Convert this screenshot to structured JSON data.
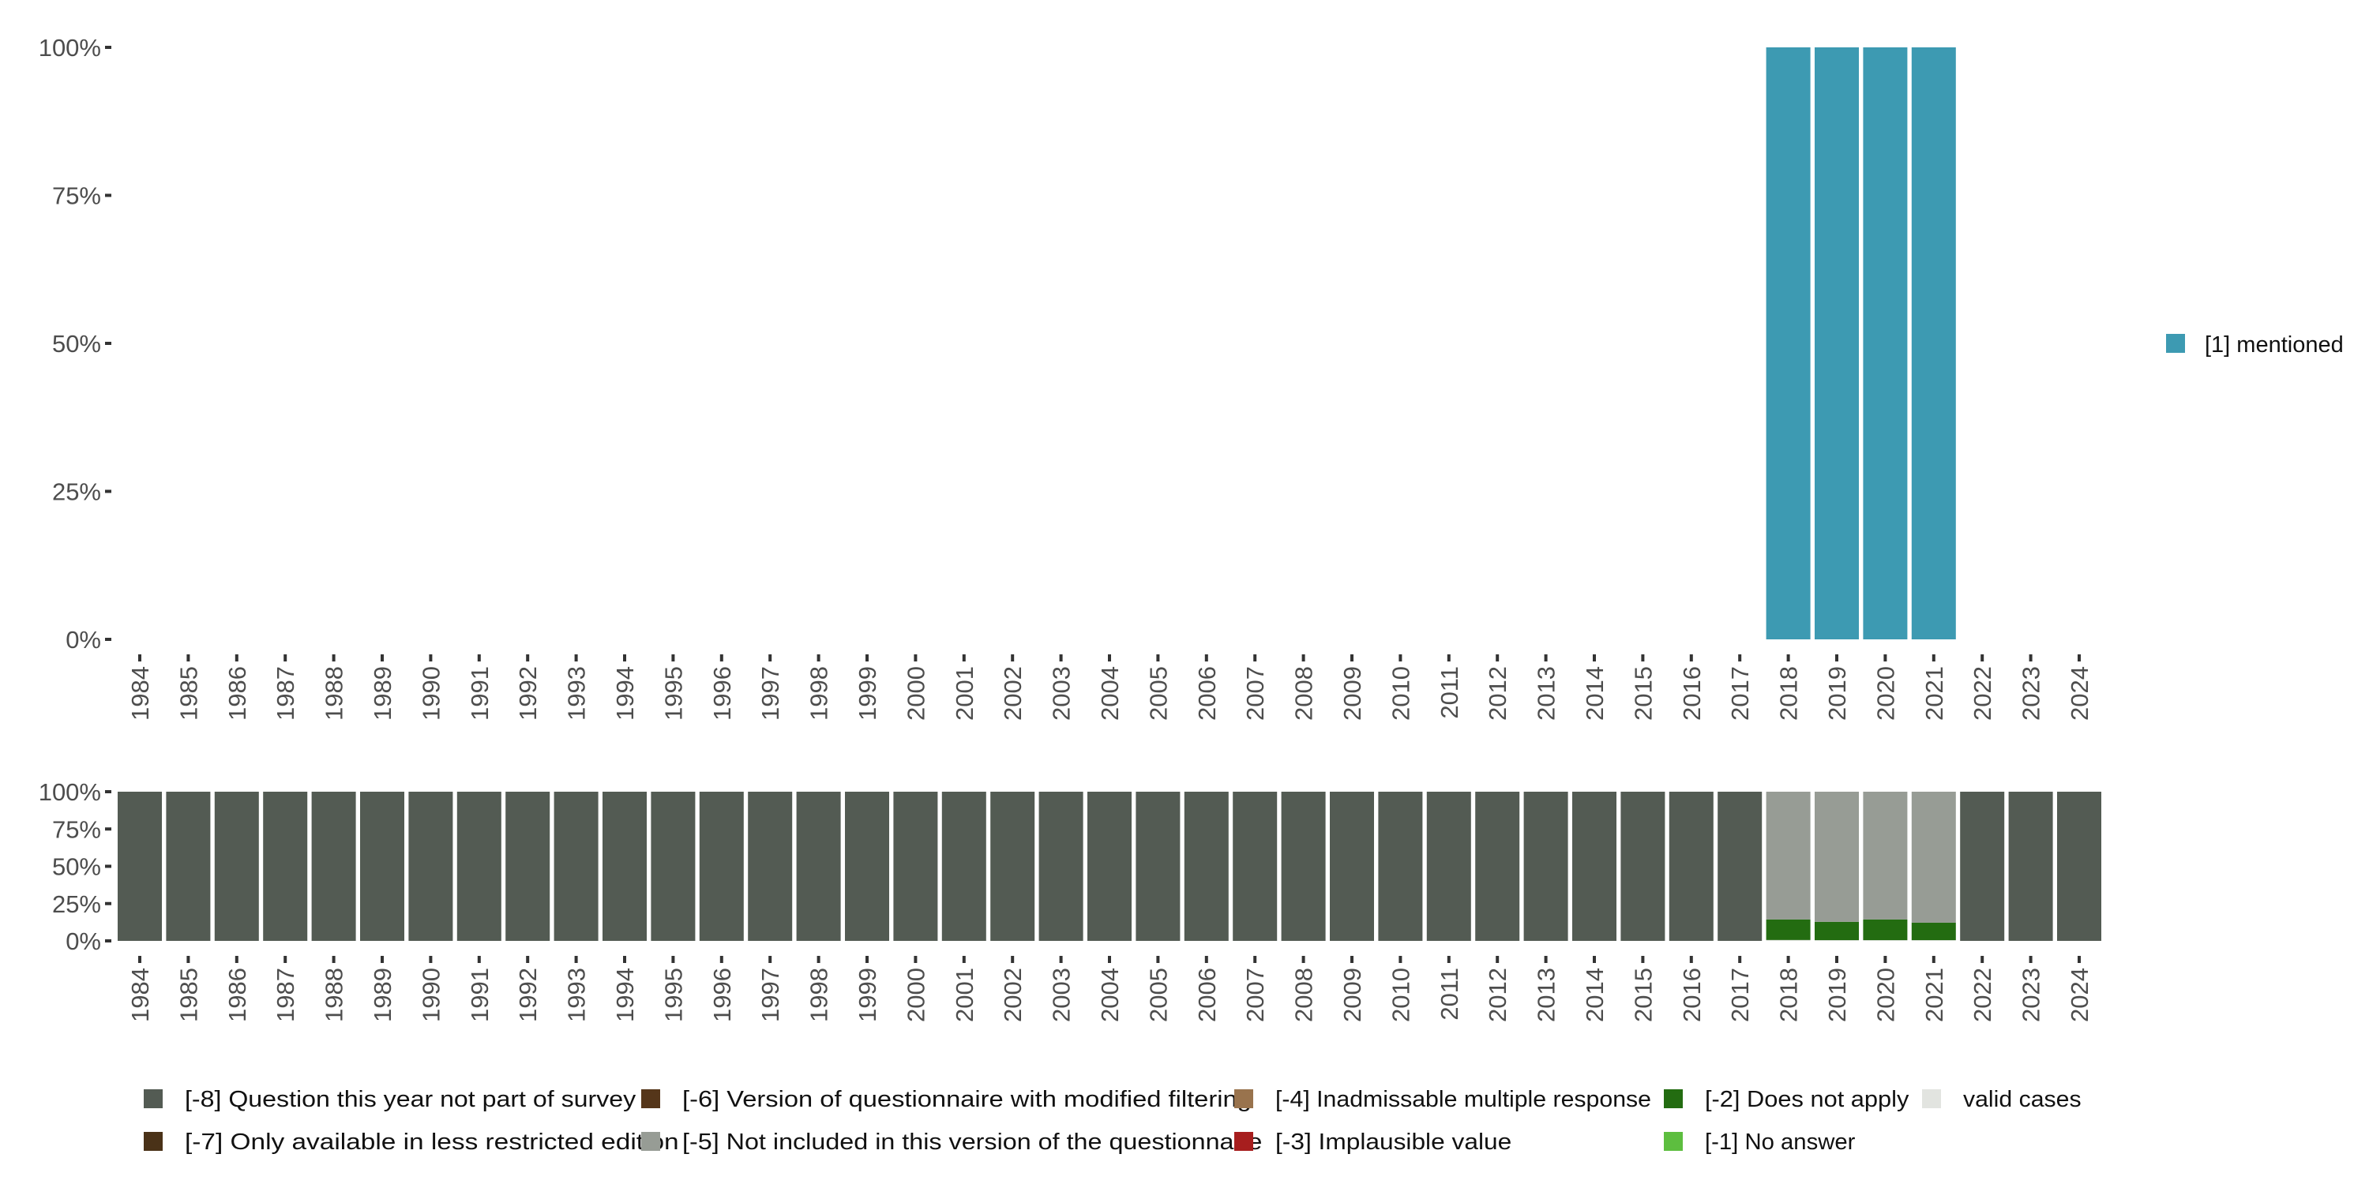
{
  "chart_data": [
    {
      "type": "bar",
      "stacked": true,
      "categories": [
        "1984",
        "1985",
        "1986",
        "1987",
        "1988",
        "1989",
        "1990",
        "1991",
        "1992",
        "1993",
        "1994",
        "1995",
        "1996",
        "1997",
        "1998",
        "1999",
        "2000",
        "2001",
        "2002",
        "2003",
        "2004",
        "2005",
        "2006",
        "2007",
        "2008",
        "2009",
        "2010",
        "2011",
        "2012",
        "2013",
        "2014",
        "2015",
        "2016",
        "2017",
        "2018",
        "2019",
        "2020",
        "2021",
        "2022",
        "2023",
        "2024"
      ],
      "yticks": [
        "0%",
        "25%",
        "50%",
        "75%",
        "100%"
      ],
      "ylim": [
        0,
        100
      ],
      "series": [
        {
          "name": "[1] mentioned",
          "color": "#3d9ab2",
          "values": {
            "2018": 100,
            "2019": 100,
            "2020": 100,
            "2021": 100
          }
        }
      ],
      "legend": {
        "placement": "right",
        "entries": [
          "[1] mentioned"
        ]
      }
    },
    {
      "type": "bar",
      "stacked": true,
      "categories": [
        "1984",
        "1985",
        "1986",
        "1987",
        "1988",
        "1989",
        "1990",
        "1991",
        "1992",
        "1993",
        "1994",
        "1995",
        "1996",
        "1997",
        "1998",
        "1999",
        "2000",
        "2001",
        "2002",
        "2003",
        "2004",
        "2005",
        "2006",
        "2007",
        "2008",
        "2009",
        "2010",
        "2011",
        "2012",
        "2013",
        "2014",
        "2015",
        "2016",
        "2017",
        "2018",
        "2019",
        "2020",
        "2021",
        "2022",
        "2023",
        "2024"
      ],
      "yticks": [
        "0%",
        "25%",
        "50%",
        "75%",
        "100%"
      ],
      "ylim": [
        0,
        100
      ],
      "series": [
        {
          "name": "valid cases",
          "color": "#e2e4e0",
          "values": {
            "2018": 0.6,
            "2019": 0.5,
            "2020": 0.5,
            "2021": 0.5
          }
        },
        {
          "name": "[-2] Does not apply",
          "color": "#236c11",
          "values": {
            "2018": 13.8,
            "2019": 12.3,
            "2020": 13.9,
            "2021": 11.7
          }
        },
        {
          "name": "[-5] Not included in this version of the questionnaire",
          "color": "#979c95",
          "values": {
            "2018": 85.6,
            "2019": 87.2,
            "2020": 85.6,
            "2021": 87.8
          }
        },
        {
          "name": "[-8] Question this year not part of survey",
          "color": "#535b53",
          "default": 100
        }
      ],
      "legend": {
        "placement": "bottom",
        "entries": [
          {
            "label": "[-8] Question this year not part of survey",
            "color": "#535b53"
          },
          {
            "label": "[-7] Only available in less restricted edition",
            "color": "#4a3218"
          },
          {
            "label": "[-6] Version of questionnaire with modified filtering",
            "color": "#55361a"
          },
          {
            "label": "[-5] Not included in this version of the questionnaire",
            "color": "#979c95"
          },
          {
            "label": "[-4] Inadmissable multiple response",
            "color": "#99734d"
          },
          {
            "label": "[-3] Implausible value",
            "color": "#a71e1e"
          },
          {
            "label": "[-2] Does not apply",
            "color": "#236c11"
          },
          {
            "label": "[-1] No answer",
            "color": "#5dbe3f"
          },
          {
            "label": "valid cases",
            "color": "#e2e4e0"
          }
        ]
      }
    }
  ]
}
